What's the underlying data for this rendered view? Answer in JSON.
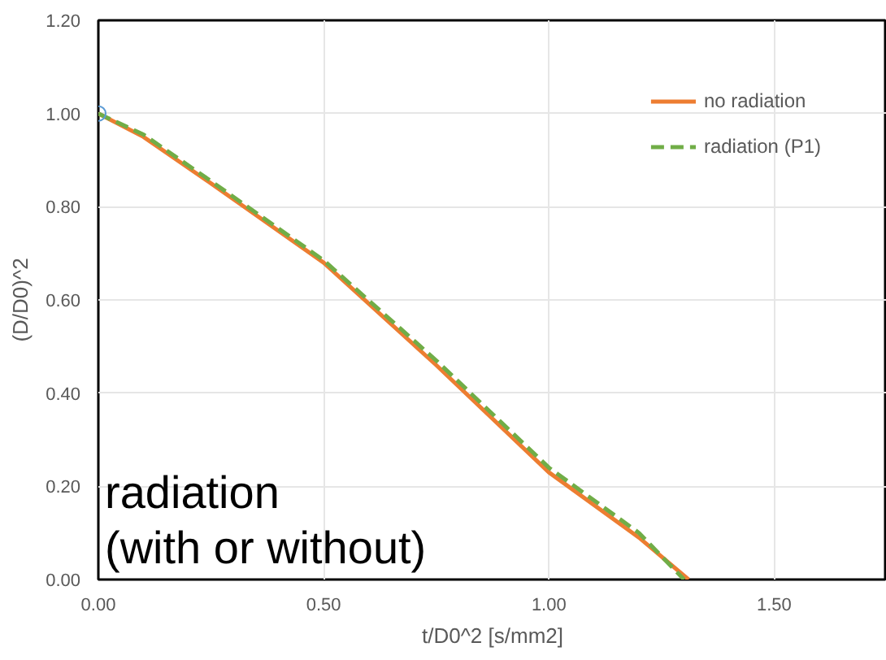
{
  "chart_data": {
    "type": "line",
    "xlabel": "t/D0^2 [s/mm2]",
    "ylabel": "(D/D0)^2",
    "xlim": [
      0,
      1.75
    ],
    "ylim": [
      0,
      1.2
    ],
    "xticks": [
      {
        "value": 0,
        "label": "0.00"
      },
      {
        "value": 0.5,
        "label": "0.50"
      },
      {
        "value": 1,
        "label": "1.00"
      },
      {
        "value": 1.5,
        "label": "1.50"
      }
    ],
    "yticks": [
      {
        "value": 0,
        "label": "0.00"
      },
      {
        "value": 0.2,
        "label": "0.20"
      },
      {
        "value": 0.4,
        "label": "0.40"
      },
      {
        "value": 0.6,
        "label": "0.60"
      },
      {
        "value": 0.8,
        "label": "0.80"
      },
      {
        "value": 1,
        "label": "1.00"
      },
      {
        "value": 1.2,
        "label": "1.20"
      }
    ],
    "grid": true,
    "legend": "top right",
    "annotations": [
      "radiation\n(with or without)"
    ],
    "series": [
      {
        "name": "no radiation",
        "color": "#ed7d31",
        "line_style": "solid",
        "x": [
          0,
          0.1,
          0.25,
          0.5,
          0.75,
          1.0,
          1.2,
          1.31
        ],
        "values": [
          1.0,
          0.95,
          0.85,
          0.68,
          0.46,
          0.23,
          0.09,
          0.0
        ]
      },
      {
        "name": "radiation (P1)",
        "color": "#70ad47",
        "line_style": "dashed",
        "x": [
          0,
          0.1,
          0.25,
          0.5,
          0.75,
          1.0,
          1.2,
          1.3
        ],
        "values": [
          1.0,
          0.955,
          0.855,
          0.685,
          0.47,
          0.24,
          0.1,
          0.0
        ]
      },
      {
        "type": "scatter",
        "color": "#5b9bd5",
        "marker": "circle",
        "x": [
          0
        ],
        "values": [
          1.0
        ]
      }
    ]
  }
}
